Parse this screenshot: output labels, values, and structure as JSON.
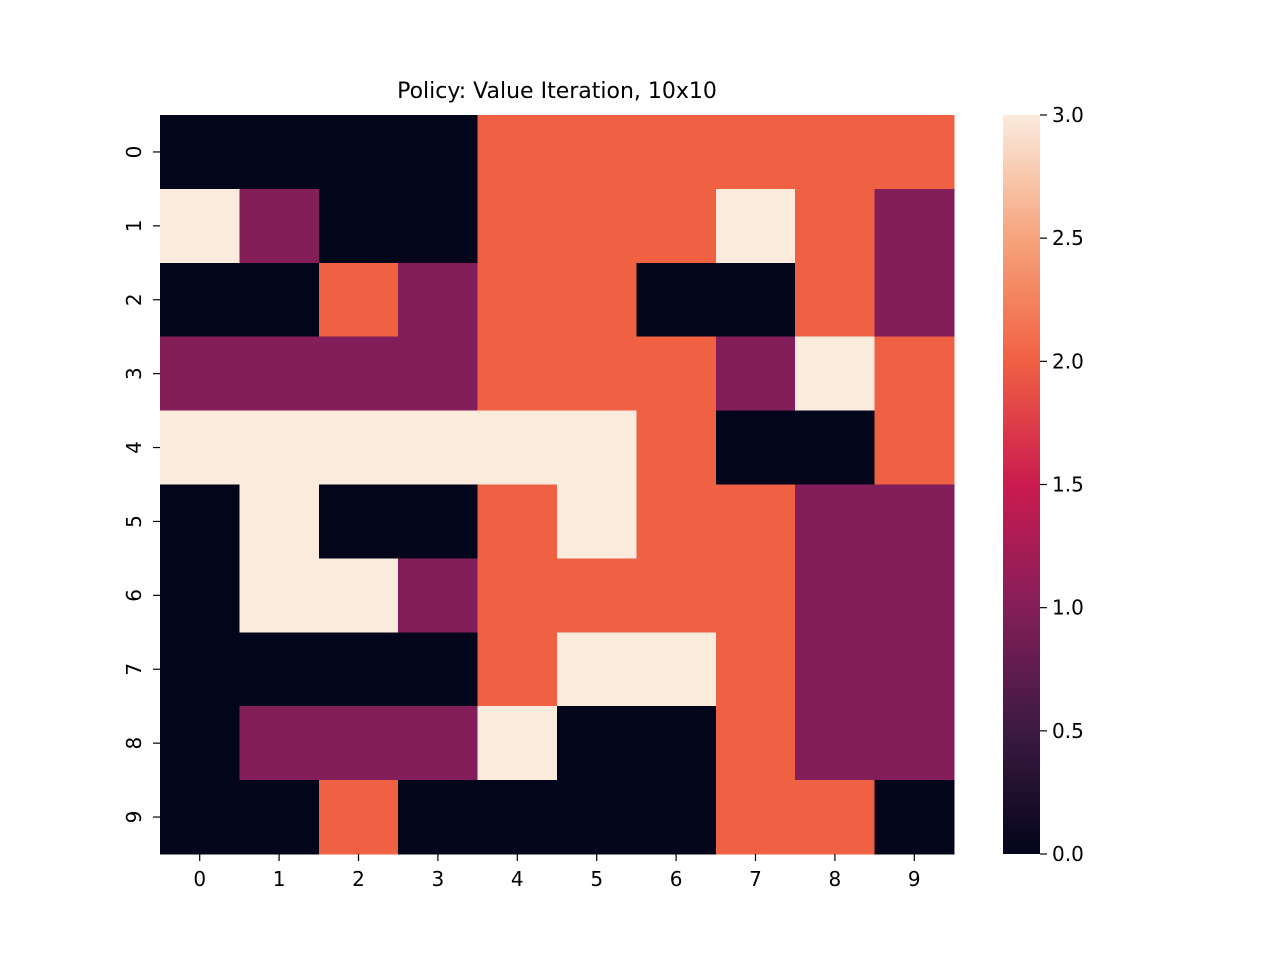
{
  "chart_data": {
    "type": "heatmap",
    "title": "Policy: Value Iteration, 10x10",
    "xlabel": "",
    "ylabel": "",
    "x_categories": [
      "0",
      "1",
      "2",
      "3",
      "4",
      "5",
      "6",
      "7",
      "8",
      "9"
    ],
    "y_categories": [
      "0",
      "1",
      "2",
      "3",
      "4",
      "5",
      "6",
      "7",
      "8",
      "9"
    ],
    "values": [
      [
        0,
        0,
        0,
        0,
        2,
        2,
        2,
        2,
        2,
        2
      ],
      [
        3,
        1,
        0,
        0,
        2,
        2,
        2,
        3,
        2,
        1
      ],
      [
        0,
        0,
        2,
        1,
        2,
        2,
        0,
        0,
        2,
        1
      ],
      [
        1,
        1,
        1,
        1,
        2,
        2,
        2,
        1,
        3,
        2
      ],
      [
        3,
        3,
        3,
        3,
        3,
        3,
        2,
        0,
        0,
        2
      ],
      [
        0,
        3,
        0,
        0,
        2,
        3,
        2,
        2,
        1,
        1
      ],
      [
        0,
        3,
        3,
        1,
        2,
        2,
        2,
        2,
        1,
        1
      ],
      [
        0,
        0,
        0,
        0,
        2,
        3,
        3,
        2,
        1,
        1
      ],
      [
        0,
        1,
        1,
        1,
        3,
        0,
        0,
        2,
        1,
        1
      ],
      [
        0,
        0,
        2,
        0,
        0,
        0,
        0,
        2,
        2,
        0
      ]
    ],
    "colorbar": {
      "range": [
        0,
        3
      ],
      "ticks": [
        "0.0",
        "0.5",
        "1.0",
        "1.5",
        "2.0",
        "2.5",
        "3.0"
      ]
    },
    "colormap": {
      "0": "#03051a",
      "1": "#841e5a",
      "2": "#f06043",
      "3": "#faebdd"
    },
    "colorbar_gradient": [
      "#03051a",
      "#3c1a42",
      "#841e5a",
      "#cb1b4f",
      "#f06043",
      "#f6a47c",
      "#faebdd"
    ],
    "grid": false
  }
}
